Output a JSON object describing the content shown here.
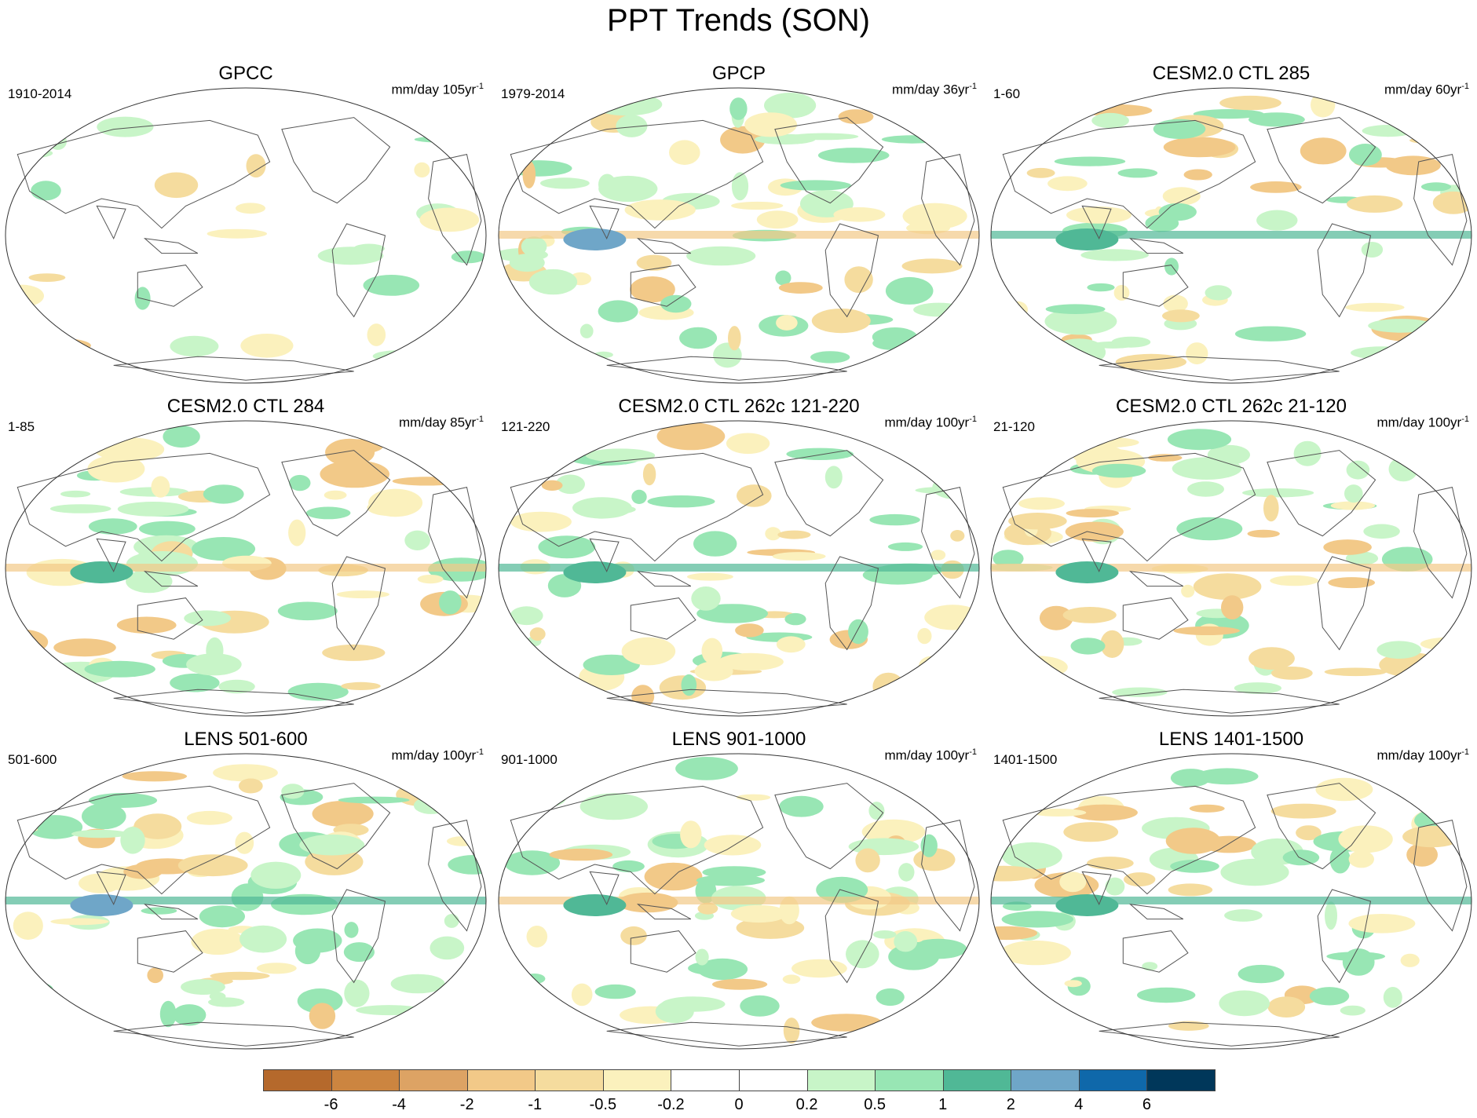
{
  "title": "PPT Trends (SON)",
  "panels": [
    {
      "title": "GPCC",
      "period": "1910-2014",
      "units": "mm/day 105yr",
      "units_sup": "-1"
    },
    {
      "title": "GPCP",
      "period": "1979-2014",
      "units": "mm/day 36yr",
      "units_sup": "-1"
    },
    {
      "title": "CESM2.0 CTL 285",
      "period": "1-60",
      "units": "mm/day 60yr",
      "units_sup": "-1"
    },
    {
      "title": "CESM2.0 CTL 284",
      "period": "1-85",
      "units": "mm/day 85yr",
      "units_sup": "-1"
    },
    {
      "title": "CESM2.0 CTL 262c 121-220",
      "period": "121-220",
      "units": "mm/day 100yr",
      "units_sup": "-1"
    },
    {
      "title": "CESM2.0 CTL 262c 21-120",
      "period": "21-120",
      "units": "mm/day 100yr",
      "units_sup": "-1"
    },
    {
      "title": "LENS 501-600",
      "period": "501-600",
      "units": "mm/day 100yr",
      "units_sup": "-1"
    },
    {
      "title": "LENS 901-1000",
      "period": "901-1000",
      "units": "mm/day 100yr",
      "units_sup": "-1"
    },
    {
      "title": "LENS 1401-1500",
      "period": "1401-1500",
      "units": "mm/day 100yr",
      "units_sup": "-1"
    }
  ],
  "colorbar": {
    "colors": [
      "#b5692c",
      "#cc8540",
      "#dda364",
      "#f2c988",
      "#f5dc9e",
      "#fbf1bd",
      "#ffffff",
      "#ffffff",
      "#c8f5c8",
      "#98e6b4",
      "#50b896",
      "#6fa6c8",
      "#0f68aa",
      "#00375a"
    ],
    "labels": [
      "-6",
      "-4",
      "-2",
      "-1",
      "-0.5",
      "-0.2",
      "0",
      "0.2",
      "0.5",
      "1",
      "2",
      "4",
      "6"
    ]
  }
}
